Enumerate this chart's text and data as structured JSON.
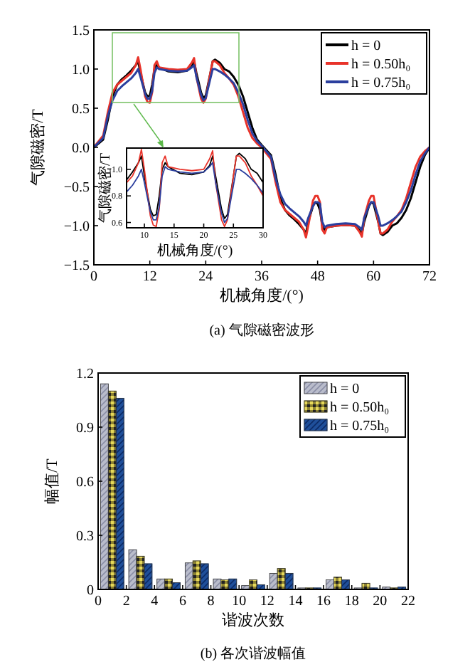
{
  "chart_data": [
    {
      "type": "line",
      "title": "(a) 气隙磁密波形",
      "xlabel": "机械角度/(°)",
      "ylabel": "气隙磁密/T",
      "xlim": [
        0,
        72
      ],
      "xticks": [
        0,
        12,
        24,
        36,
        48,
        60,
        72
      ],
      "ylim": [
        -1.5,
        1.5
      ],
      "yticks": [
        {
          "value": -1.5,
          "label": "−1.5"
        },
        {
          "value": -1,
          "label": "−1.0"
        },
        {
          "value": -0.5,
          "label": "−0.5"
        },
        {
          "value": 0,
          "label": "0.0"
        },
        {
          "value": 0.5,
          "label": "0.5"
        },
        {
          "value": 1,
          "label": "1.0"
        },
        {
          "value": 1.5,
          "label": "1.5"
        }
      ],
      "legend": "top right",
      "x": [
        0,
        2,
        3,
        4,
        5,
        6,
        7,
        8,
        9,
        9.5,
        10,
        11,
        11.5,
        12,
        12.5,
        13,
        13.5,
        14,
        16,
        18,
        20,
        21,
        21.5,
        22,
        23,
        23.5,
        24,
        25,
        25.5,
        26,
        27,
        28,
        29,
        30,
        31,
        32,
        33,
        34,
        35,
        36,
        38,
        39,
        40,
        41,
        42,
        43,
        44,
        45,
        45.5,
        46,
        47,
        47.5,
        48,
        48.5,
        49,
        49.5,
        50,
        52,
        54,
        56,
        57,
        57.5,
        58,
        59,
        59.5,
        60,
        61,
        61.5,
        62,
        63,
        64,
        65,
        66,
        67,
        68,
        69,
        70,
        71,
        72
      ],
      "series": [
        {
          "name": "h = 0",
          "color": "#000000",
          "values": [
            0,
            0.1,
            0.35,
            0.65,
            0.8,
            0.87,
            0.92,
            0.98,
            1.05,
            1.1,
            0.95,
            0.7,
            0.65,
            0.66,
            0.8,
            1.0,
            1.05,
            1.02,
            0.97,
            0.96,
            0.98,
            1.03,
            1.1,
            0.95,
            0.7,
            0.63,
            0.66,
            0.95,
            1.1,
            1.12,
            1.08,
            1.0,
            0.97,
            0.9,
            0.8,
            0.65,
            0.45,
            0.25,
            0.1,
            0.03,
            -0.1,
            -0.35,
            -0.65,
            -0.8,
            -0.87,
            -0.92,
            -0.98,
            -1.05,
            -1.1,
            -0.95,
            -0.75,
            -0.7,
            -0.72,
            -0.8,
            -1.0,
            -1.05,
            -1.02,
            -1.0,
            -0.99,
            -1.0,
            -1.06,
            -1.1,
            -0.95,
            -0.75,
            -0.7,
            -0.72,
            -0.95,
            -1.1,
            -1.12,
            -1.08,
            -1.0,
            -0.97,
            -0.9,
            -0.8,
            -0.65,
            -0.45,
            -0.25,
            -0.1,
            0
          ]
        },
        {
          "name": "h = 0.50h₀",
          "color": "#e8332a",
          "values": [
            0,
            0.15,
            0.45,
            0.7,
            0.8,
            0.85,
            0.9,
            0.95,
            1.05,
            1.15,
            1.0,
            0.65,
            0.58,
            0.57,
            0.7,
            1.05,
            1.1,
            1.02,
            1.0,
            0.99,
            1.0,
            1.08,
            1.14,
            0.9,
            0.62,
            0.57,
            0.62,
            0.95,
            1.1,
            1.1,
            1.05,
            0.95,
            0.88,
            0.8,
            0.65,
            0.45,
            0.25,
            0.12,
            0.05,
            0,
            -0.15,
            -0.45,
            -0.7,
            -0.8,
            -0.85,
            -0.9,
            -0.95,
            -1.05,
            -1.15,
            -1.0,
            -0.68,
            -0.62,
            -0.62,
            -0.7,
            -1.05,
            -1.1,
            -1.02,
            -1.0,
            -0.99,
            -1.0,
            -1.08,
            -1.14,
            -0.9,
            -0.68,
            -0.62,
            -0.62,
            -0.95,
            -1.1,
            -1.1,
            -1.05,
            -0.95,
            -0.88,
            -0.8,
            -0.65,
            -0.45,
            -0.25,
            -0.12,
            -0.05,
            0
          ]
        },
        {
          "name": "h = 0.75h₀",
          "color": "#2b3f9e",
          "values": [
            0,
            0.12,
            0.4,
            0.6,
            0.72,
            0.78,
            0.83,
            0.88,
            0.95,
            1.0,
            0.9,
            0.68,
            0.62,
            0.62,
            0.72,
            0.95,
            1.02,
            1.0,
            0.98,
            0.97,
            0.98,
            1.02,
            1.05,
            0.9,
            0.67,
            0.6,
            0.63,
            0.88,
            1.0,
            1.0,
            0.97,
            0.93,
            0.88,
            0.82,
            0.7,
            0.55,
            0.35,
            0.18,
            0.08,
            0.02,
            -0.12,
            -0.4,
            -0.6,
            -0.72,
            -0.78,
            -0.83,
            -0.88,
            -0.95,
            -1.0,
            -0.9,
            -0.75,
            -0.7,
            -0.7,
            -0.72,
            -0.95,
            -1.02,
            -1.0,
            -0.98,
            -0.97,
            -0.98,
            -1.02,
            -1.05,
            -0.9,
            -0.75,
            -0.7,
            -0.7,
            -0.88,
            -1.0,
            -1.0,
            -0.97,
            -0.93,
            -0.88,
            -0.82,
            -0.7,
            -0.55,
            -0.35,
            -0.18,
            -0.08,
            0
          ]
        }
      ]
    },
    {
      "type": "line",
      "xlabel": "机械角度/(°)",
      "ylabel": "气隙磁密/T",
      "xlim": [
        7,
        30
      ],
      "xticks": [
        10,
        15,
        20,
        25,
        30
      ],
      "ylim": [
        0.56,
        1.16
      ],
      "yticks": [
        0.6,
        0.8,
        {
          "value": 1,
          "label": "1.0"
        }
      ],
      "x": [
        7,
        8,
        9,
        9.5,
        10,
        11,
        11.5,
        12,
        12.5,
        13,
        13.5,
        14,
        16,
        18,
        20,
        21,
        21.5,
        22,
        23,
        23.5,
        24,
        25,
        25.5,
        26,
        27,
        28,
        29,
        30
      ],
      "series": [
        {
          "color": "#000000",
          "values": [
            0.92,
            0.98,
            1.05,
            1.1,
            0.95,
            0.7,
            0.65,
            0.66,
            0.8,
            1.0,
            1.05,
            1.02,
            0.97,
            0.96,
            0.98,
            1.03,
            1.1,
            0.95,
            0.7,
            0.63,
            0.66,
            0.95,
            1.1,
            1.12,
            1.08,
            1.0,
            0.97,
            0.9
          ]
        },
        {
          "color": "#e8332a",
          "values": [
            0.9,
            0.95,
            1.05,
            1.15,
            1.0,
            0.65,
            0.58,
            0.57,
            0.7,
            1.05,
            1.1,
            1.02,
            1.0,
            0.99,
            1.0,
            1.08,
            1.14,
            0.9,
            0.62,
            0.57,
            0.62,
            0.95,
            1.1,
            1.1,
            1.05,
            0.95,
            0.88,
            0.8
          ]
        },
        {
          "color": "#2b3f9e",
          "values": [
            0.83,
            0.88,
            0.95,
            1.0,
            0.9,
            0.68,
            0.62,
            0.62,
            0.72,
            0.95,
            1.02,
            1.0,
            0.98,
            0.97,
            0.98,
            1.02,
            1.05,
            0.9,
            0.67,
            0.6,
            0.63,
            0.88,
            1.0,
            1.0,
            0.97,
            0.93,
            0.88,
            0.82
          ]
        }
      ]
    },
    {
      "type": "bar",
      "title": "(b) 各次谐波幅值",
      "xlabel": "谐波次数",
      "ylabel": "幅值/T",
      "xlim": [
        0,
        22
      ],
      "xticks": [
        0,
        2,
        4,
        6,
        8,
        10,
        12,
        14,
        16,
        18,
        20,
        22
      ],
      "ylim": [
        0,
        1.2
      ],
      "yticks": [
        0,
        0.3,
        0.6,
        0.9,
        {
          "value": 1.2,
          "label": "1.2"
        }
      ],
      "legend": "top right",
      "x": [
        1,
        3,
        5,
        7,
        9,
        11,
        13,
        15,
        17,
        19,
        21
      ],
      "series": [
        {
          "name": "h = 0",
          "color": "#b9bccb",
          "values": [
            1.14,
            0.22,
            0.058,
            0.147,
            0.058,
            0.021,
            0.089,
            0.008,
            0.053,
            0.008,
            0.013
          ]
        },
        {
          "name": "h = 0.50h₀",
          "color": "#8c8232",
          "values": [
            1.1,
            0.184,
            0.058,
            0.158,
            0.053,
            0.053,
            0.116,
            0.008,
            0.068,
            0.034,
            0.008
          ]
        },
        {
          "name": "h = 0.75h₀",
          "color": "#1f4f9a",
          "values": [
            1.06,
            0.142,
            0.037,
            0.142,
            0.058,
            0.026,
            0.089,
            0.008,
            0.053,
            0.008,
            0.013
          ]
        }
      ]
    }
  ]
}
